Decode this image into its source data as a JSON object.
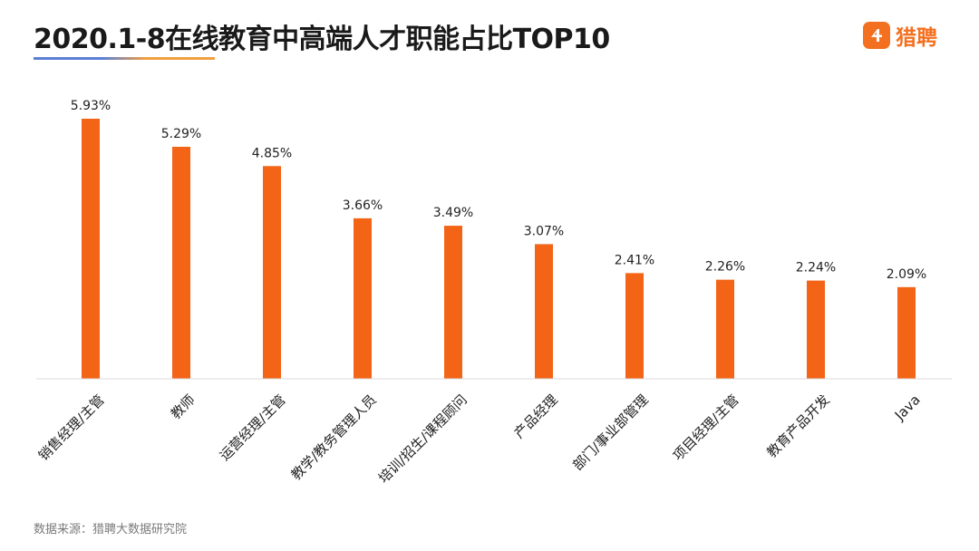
{
  "header": {
    "title": "2020.1-8在线教育中高端人才职能占比TOP10",
    "logo_text": "猎聘",
    "logo_badge_icon": "speech-bubble-4-icon",
    "brand_color": "#f37021"
  },
  "footer": {
    "source": "数据来源：猎聘大数据研究院"
  },
  "chart_data": {
    "type": "bar",
    "title": "2020.1-8在线教育中高端人才职能占比TOP10",
    "categories": [
      "销售经理/主管",
      "教师",
      "运营经理/主管",
      "教学/教务管理人员",
      "培训/招生/课程顾问",
      "产品经理",
      "部门/事业部管理",
      "项目经理/主管",
      "教育产品开发",
      "Java"
    ],
    "values": [
      5.93,
      5.29,
      4.85,
      3.66,
      3.49,
      3.07,
      2.41,
      2.26,
      2.24,
      2.09
    ],
    "value_labels": [
      "5.93%",
      "5.29%",
      "4.85%",
      "3.66%",
      "3.49%",
      "3.07%",
      "2.41%",
      "2.26%",
      "2.24%",
      "2.09%"
    ],
    "unit": "%",
    "ylim": [
      0,
      5.93
    ],
    "bar_color": "#f36417",
    "grid": false,
    "legend": "none",
    "xlabel": "",
    "ylabel": ""
  }
}
